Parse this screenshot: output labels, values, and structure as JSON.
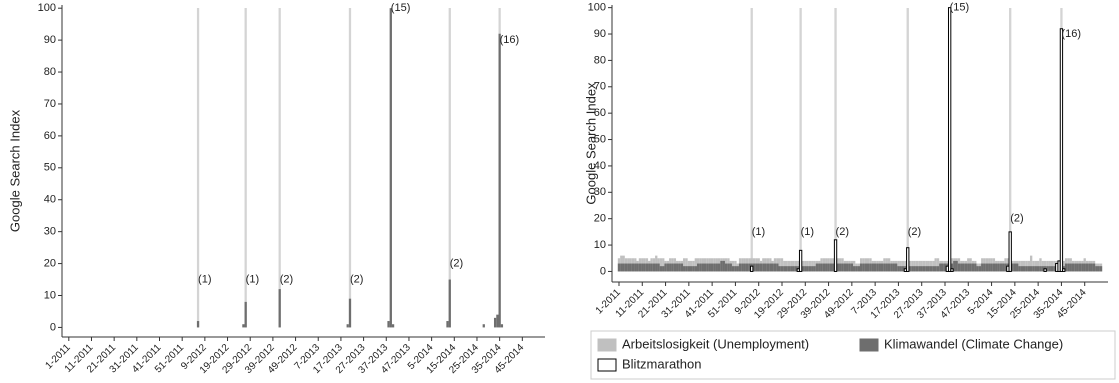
{
  "chart_data": [
    {
      "type": "bar",
      "ylabel": "Google Search Index",
      "xlim": [
        -3,
        210
      ],
      "ylim": [
        -3,
        101
      ],
      "yticks": [
        0,
        10,
        20,
        30,
        40,
        50,
        60,
        70,
        80,
        90,
        100
      ],
      "xticks": [
        {
          "value": 0,
          "label": "1-2011"
        },
        {
          "value": 10,
          "label": "11-2011"
        },
        {
          "value": 20,
          "label": "21-2011"
        },
        {
          "value": 30,
          "label": "31-2011"
        },
        {
          "value": 40,
          "label": "41-2011"
        },
        {
          "value": 50,
          "label": "51-2011"
        },
        {
          "value": 60,
          "label": "9-2012"
        },
        {
          "value": 70,
          "label": "19-2012"
        },
        {
          "value": 80,
          "label": "29-2012"
        },
        {
          "value": 90,
          "label": "39-2012"
        },
        {
          "value": 100,
          "label": "49-2012"
        },
        {
          "value": 110,
          "label": "7-2013"
        },
        {
          "value": 120,
          "label": "17-2013"
        },
        {
          "value": 130,
          "label": "27-2013"
        },
        {
          "value": 140,
          "label": "37-2013"
        },
        {
          "value": 150,
          "label": "47-2013"
        },
        {
          "value": 160,
          "label": "5-2014"
        },
        {
          "value": 170,
          "label": "15-2014"
        },
        {
          "value": 180,
          "label": "25-2014"
        },
        {
          "value": 190,
          "label": "35-2014"
        },
        {
          "value": 200,
          "label": "45-2014"
        }
      ],
      "highlights": [
        57,
        78,
        93,
        124,
        142,
        168,
        190
      ],
      "highlight_color": "#d4d4d4",
      "series": [
        {
          "color": "#6e6e6e",
          "x": [
            57,
            77,
            78,
            93,
            123,
            124,
            141,
            142,
            143,
            167,
            168,
            183,
            188,
            189,
            190,
            191
          ],
          "values": [
            2,
            1,
            8,
            12,
            1,
            9,
            2,
            100,
            1,
            2,
            15,
            1,
            3,
            4,
            92,
            1
          ]
        }
      ],
      "annotations": [
        {
          "text": "(1)",
          "x": 57,
          "y": 15
        },
        {
          "text": "(1)",
          "x": 78,
          "y": 15
        },
        {
          "text": "(2)",
          "x": 93,
          "y": 15
        },
        {
          "text": "(2)",
          "x": 124,
          "y": 15
        },
        {
          "text": "(15)",
          "x": 142,
          "y": 100
        },
        {
          "text": "(2)",
          "x": 168,
          "y": 20
        },
        {
          "text": "(16)",
          "x": 190,
          "y": 90
        }
      ]
    },
    {
      "type": "bar",
      "ylabel": "Google Search Index",
      "xlim": [
        -3,
        210
      ],
      "ylim": [
        -4,
        101
      ],
      "yticks": [
        0,
        10,
        20,
        30,
        40,
        50,
        60,
        70,
        80,
        90,
        100
      ],
      "xticks": [
        {
          "value": 0,
          "label": "1-2011"
        },
        {
          "value": 10,
          "label": "11-2011"
        },
        {
          "value": 20,
          "label": "21-2011"
        },
        {
          "value": 30,
          "label": "31-2011"
        },
        {
          "value": 40,
          "label": "41-2011"
        },
        {
          "value": 50,
          "label": "51-2011"
        },
        {
          "value": 60,
          "label": "9-2012"
        },
        {
          "value": 70,
          "label": "19-2012"
        },
        {
          "value": 80,
          "label": "29-2012"
        },
        {
          "value": 90,
          "label": "39-2012"
        },
        {
          "value": 100,
          "label": "49-2012"
        },
        {
          "value": 110,
          "label": "7-2013"
        },
        {
          "value": 120,
          "label": "17-2013"
        },
        {
          "value": 130,
          "label": "27-2013"
        },
        {
          "value": 140,
          "label": "37-2013"
        },
        {
          "value": 150,
          "label": "47-2013"
        },
        {
          "value": 160,
          "label": "5-2014"
        },
        {
          "value": 170,
          "label": "15-2014"
        },
        {
          "value": 180,
          "label": "25-2014"
        },
        {
          "value": 190,
          "label": "35-2014"
        },
        {
          "value": 200,
          "label": "45-2014"
        }
      ],
      "highlights": [
        57,
        78,
        93,
        124,
        142,
        168,
        190
      ],
      "highlight_color": "#d4d4d4",
      "legend": "bottom",
      "series": [
        {
          "name": "Arbeitslosigkeit (Unemployment)",
          "color": "#c0c0c0",
          "values": [
            5,
            6,
            6,
            5,
            5,
            5,
            5,
            5,
            4,
            5,
            5,
            5,
            5,
            4,
            5,
            5,
            6,
            5,
            5,
            5,
            4,
            4,
            5,
            5,
            5,
            4,
            4,
            4,
            5,
            5,
            4,
            4,
            4,
            5,
            5,
            5,
            5,
            5,
            5,
            5,
            5,
            5,
            5,
            5,
            5,
            5,
            5,
            5,
            4,
            4,
            4,
            3,
            5,
            5,
            5,
            5,
            5,
            5,
            5,
            5,
            5,
            4,
            5,
            5,
            5,
            5,
            4,
            5,
            5,
            5,
            5,
            4,
            4,
            4,
            4,
            4,
            4,
            4,
            4,
            4,
            4,
            4,
            4,
            4,
            4,
            4,
            4,
            5,
            5,
            5,
            5,
            5,
            5,
            5,
            5,
            5,
            5,
            4,
            4,
            4,
            4,
            4,
            3,
            3,
            5,
            5,
            5,
            5,
            5,
            4,
            4,
            4,
            4,
            4,
            5,
            5,
            5,
            4,
            4,
            4,
            4,
            4,
            4,
            4,
            4,
            4,
            4,
            4,
            4,
            4,
            4,
            4,
            4,
            4,
            4,
            4,
            5,
            5,
            4,
            4,
            4,
            4,
            4,
            5,
            5,
            5,
            5,
            4,
            4,
            4,
            5,
            5,
            4,
            4,
            3,
            3,
            5,
            5,
            5,
            5,
            5,
            5,
            4,
            4,
            4,
            4,
            5,
            5,
            5,
            4,
            4,
            4,
            4,
            4,
            4,
            4,
            4,
            6,
            4,
            4,
            4,
            5,
            4,
            4,
            4,
            4,
            4,
            4,
            4,
            4,
            4,
            4,
            5,
            5,
            5,
            4,
            4,
            4,
            4,
            4,
            5,
            4,
            4,
            4,
            4,
            3,
            3,
            3
          ]
        },
        {
          "name": "Klimawandel (Climate Change)",
          "color": "#6e6e6e",
          "values": [
            3,
            3,
            3,
            3,
            3,
            3,
            3,
            3,
            3,
            3,
            3,
            3,
            3,
            3,
            3,
            3,
            3,
            3,
            2,
            2,
            3,
            3,
            3,
            3,
            3,
            3,
            3,
            3,
            2,
            2,
            2,
            2,
            2,
            2,
            3,
            3,
            3,
            3,
            3,
            3,
            3,
            3,
            3,
            3,
            4,
            4,
            3,
            3,
            3,
            2,
            2,
            2,
            3,
            3,
            3,
            3,
            3,
            3,
            3,
            3,
            3,
            3,
            3,
            3,
            3,
            3,
            3,
            3,
            3,
            2,
            2,
            2,
            2,
            2,
            2,
            2,
            2,
            2,
            2,
            2,
            2,
            2,
            2,
            2,
            2,
            3,
            3,
            3,
            3,
            3,
            3,
            3,
            3,
            3,
            3,
            3,
            3,
            3,
            3,
            3,
            3,
            2,
            2,
            2,
            3,
            3,
            3,
            3,
            3,
            3,
            3,
            3,
            3,
            3,
            3,
            3,
            3,
            3,
            3,
            3,
            2,
            2,
            2,
            2,
            2,
            2,
            2,
            2,
            2,
            2,
            2,
            2,
            2,
            2,
            2,
            2,
            2,
            2,
            3,
            3,
            3,
            3,
            3,
            3,
            4,
            4,
            3,
            3,
            3,
            3,
            3,
            3,
            3,
            3,
            2,
            2,
            3,
            3,
            3,
            3,
            3,
            3,
            3,
            3,
            3,
            3,
            3,
            3,
            3,
            3,
            3,
            3,
            2,
            2,
            2,
            2,
            2,
            2,
            2,
            2,
            2,
            2,
            2,
            2,
            2,
            2,
            2,
            2,
            2,
            2,
            2,
            2,
            3,
            3,
            3,
            3,
            3,
            3,
            3,
            3,
            3,
            3,
            3,
            3,
            3,
            2,
            2,
            2
          ]
        },
        {
          "name": "Blitzmarathon",
          "color": "#ffffff",
          "x": [
            57,
            77,
            78,
            93,
            123,
            124,
            141,
            142,
            143,
            167,
            168,
            183,
            188,
            189,
            190,
            191
          ],
          "values": [
            2,
            1,
            8,
            12,
            1,
            9,
            2,
            100,
            1,
            2,
            15,
            1,
            3,
            4,
            92,
            1
          ]
        }
      ],
      "annotations": [
        {
          "text": "(1)",
          "x": 57,
          "y": 15
        },
        {
          "text": "(1)",
          "x": 78,
          "y": 15
        },
        {
          "text": "(2)",
          "x": 93,
          "y": 15
        },
        {
          "text": "(2)",
          "x": 124,
          "y": 15
        },
        {
          "text": "(15)",
          "x": 142,
          "y": 100
        },
        {
          "text": "(2)",
          "x": 168,
          "y": 20
        },
        {
          "text": "(16)",
          "x": 190,
          "y": 90
        }
      ]
    }
  ]
}
